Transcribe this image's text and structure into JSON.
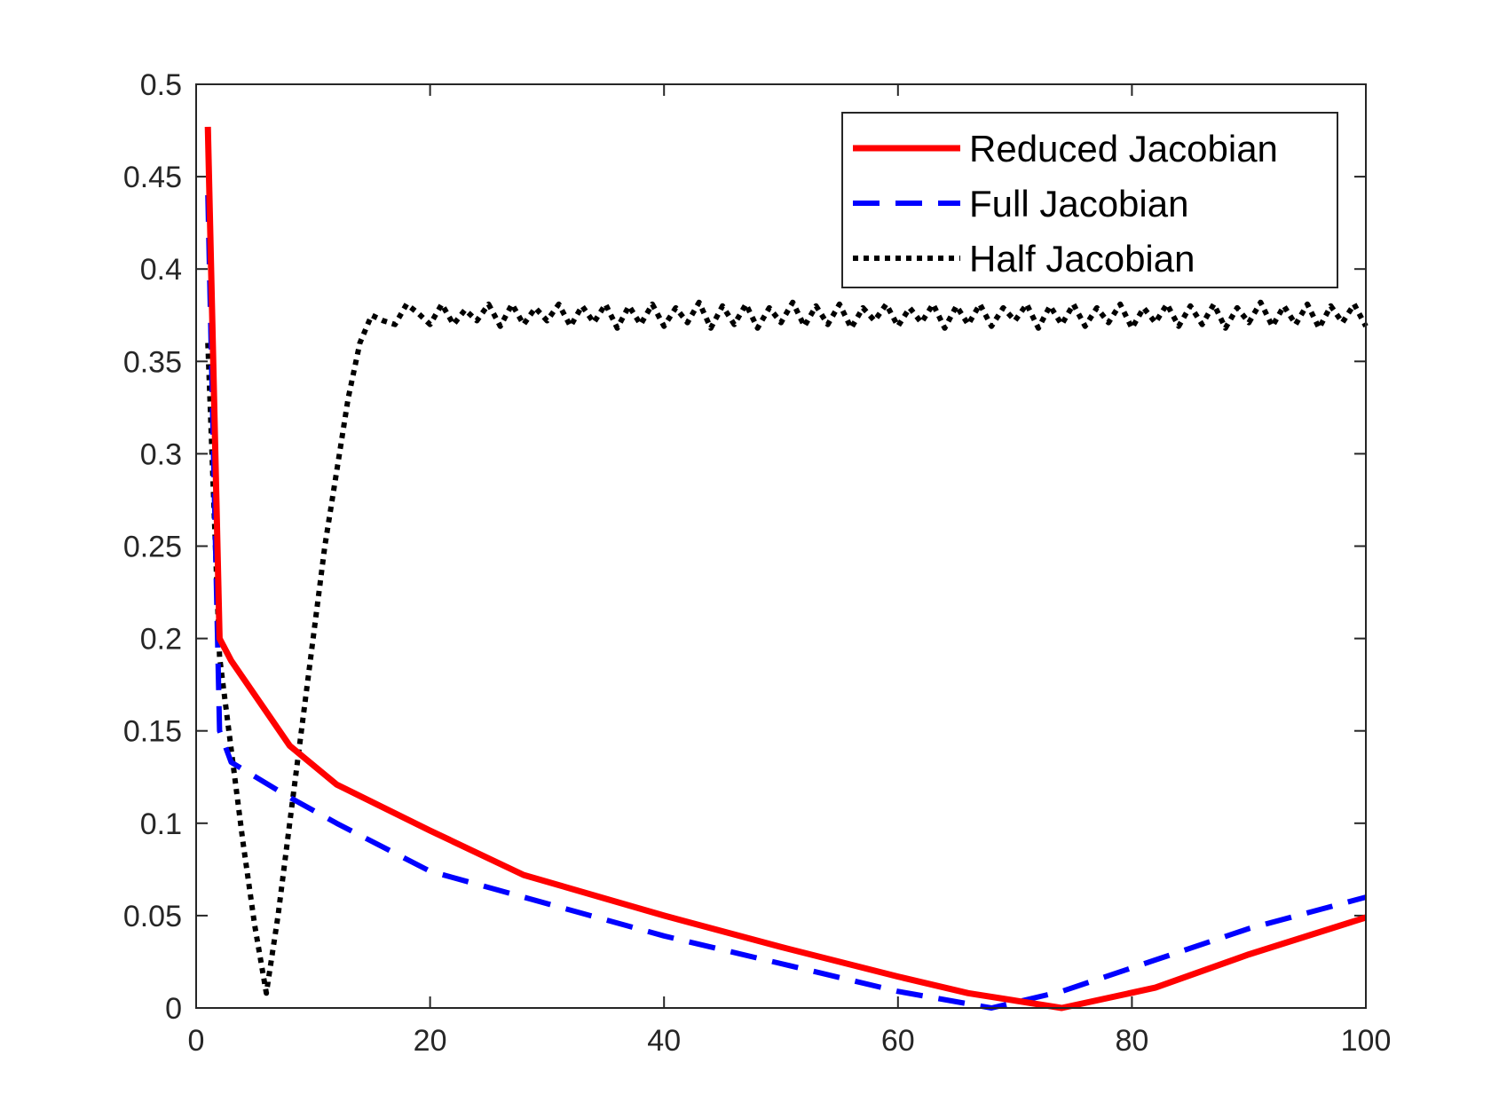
{
  "chart_data": {
    "type": "line",
    "title": "",
    "xlabel": "",
    "ylabel": "",
    "xlim": [
      0,
      100
    ],
    "ylim": [
      0,
      0.5
    ],
    "xticks": [
      0,
      20,
      40,
      60,
      80,
      100
    ],
    "xtick_labels": [
      "0",
      "20",
      "40",
      "60",
      "80",
      "100"
    ],
    "yticks": [
      0,
      0.05,
      0.1,
      0.15,
      0.2,
      0.25,
      0.3,
      0.35,
      0.4,
      0.45,
      0.5
    ],
    "ytick_labels": [
      "0",
      "0.05",
      "0.1",
      "0.15",
      "0.2",
      "0.25",
      "0.3",
      "0.35",
      "0.4",
      "0.45",
      "0.5"
    ],
    "grid": false,
    "legend_position": "top-right",
    "series": [
      {
        "name": "Reduced Jacobian",
        "color": "#ff0000",
        "style": "solid",
        "x": [
          1,
          2,
          3,
          8,
          12,
          20,
          28,
          40,
          50,
          60,
          66,
          74,
          82,
          90,
          100
        ],
        "y": [
          0.477,
          0.2,
          0.188,
          0.142,
          0.121,
          0.096,
          0.072,
          0.05,
          0.033,
          0.017,
          0.008,
          0.0,
          0.011,
          0.029,
          0.049
        ]
      },
      {
        "name": "Full Jacobian",
        "color": "#0000ff",
        "style": "dashed",
        "x": [
          1,
          2,
          3,
          8,
          12,
          20,
          28,
          40,
          50,
          60,
          68,
          74,
          82,
          90,
          100
        ],
        "y": [
          0.44,
          0.15,
          0.133,
          0.114,
          0.1,
          0.074,
          0.06,
          0.039,
          0.024,
          0.009,
          0.0,
          0.009,
          0.026,
          0.043,
          0.06
        ]
      },
      {
        "name": "Half Jacobian",
        "color": "#000000",
        "style": "dotted",
        "x": [
          1,
          2,
          3,
          4,
          5,
          6,
          7,
          8,
          9,
          10,
          11,
          12,
          13,
          14,
          15,
          16,
          17,
          18,
          19,
          20,
          21,
          22,
          23,
          24,
          25,
          26,
          27,
          28,
          29,
          30,
          31,
          32,
          33,
          34,
          35,
          36,
          37,
          38,
          39,
          40,
          41,
          42,
          43,
          44,
          45,
          46,
          47,
          48,
          49,
          50,
          51,
          52,
          53,
          54,
          55,
          56,
          57,
          58,
          59,
          60,
          61,
          62,
          63,
          64,
          65,
          66,
          67,
          68,
          69,
          70,
          71,
          72,
          73,
          74,
          75,
          76,
          77,
          78,
          79,
          80,
          81,
          82,
          83,
          84,
          85,
          86,
          87,
          88,
          89,
          90,
          91,
          92,
          93,
          94,
          95,
          96,
          97,
          98,
          99,
          100
        ],
        "y": [
          0.36,
          0.19,
          0.14,
          0.09,
          0.045,
          0.008,
          0.05,
          0.1,
          0.15,
          0.2,
          0.25,
          0.29,
          0.33,
          0.36,
          0.375,
          0.372,
          0.37,
          0.381,
          0.376,
          0.37,
          0.381,
          0.37,
          0.378,
          0.372,
          0.381,
          0.369,
          0.381,
          0.37,
          0.379,
          0.372,
          0.381,
          0.369,
          0.38,
          0.371,
          0.381,
          0.368,
          0.38,
          0.37,
          0.381,
          0.369,
          0.379,
          0.371,
          0.382,
          0.368,
          0.38,
          0.37,
          0.381,
          0.368,
          0.379,
          0.371,
          0.382,
          0.369,
          0.38,
          0.37,
          0.381,
          0.368,
          0.379,
          0.372,
          0.381,
          0.369,
          0.379,
          0.371,
          0.381,
          0.368,
          0.38,
          0.37,
          0.381,
          0.369,
          0.379,
          0.372,
          0.381,
          0.368,
          0.38,
          0.37,
          0.381,
          0.369,
          0.379,
          0.371,
          0.381,
          0.368,
          0.379,
          0.371,
          0.381,
          0.369,
          0.38,
          0.37,
          0.381,
          0.368,
          0.379,
          0.371,
          0.382,
          0.369,
          0.38,
          0.37,
          0.381,
          0.368,
          0.38,
          0.371,
          0.381,
          0.369
        ]
      }
    ]
  }
}
